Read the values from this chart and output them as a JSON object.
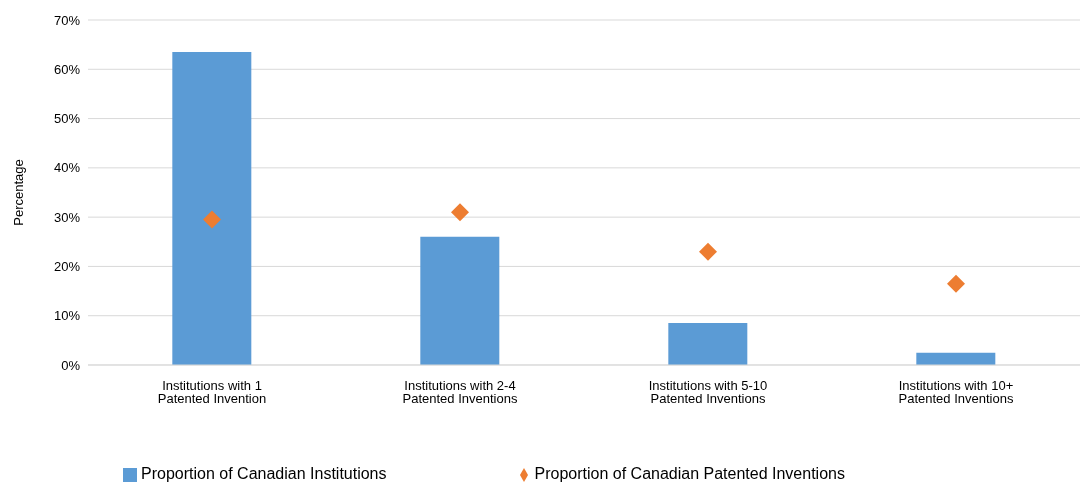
{
  "chart_data": {
    "type": "bar",
    "ylabel": "Percentage",
    "categories": [
      "Institutions with 1 Patented Invention",
      "Institutions with 2-4 Patented Inventions",
      "Institutions with 5-10 Patented Inventions",
      "Institutions with 10+ Patented Inventions"
    ],
    "series": [
      {
        "name": "Proportion of Canadian Institutions",
        "color": "#5b9bd5",
        "values": [
          63.5,
          26,
          8.5,
          2.5
        ]
      },
      {
        "name": "Proportion of Canadian Patented Inventions",
        "type": "scatter",
        "marker": "diamond",
        "color": "#ed7d31",
        "values": [
          29.5,
          31,
          23,
          16.5
        ]
      }
    ],
    "ylim": [
      0,
      70
    ],
    "yticks": [
      {
        "value": 0,
        "label": "0%"
      },
      {
        "value": 10,
        "label": "10%"
      },
      {
        "value": 20,
        "label": "20%"
      },
      {
        "value": 30,
        "label": "30%"
      },
      {
        "value": 40,
        "label": "40%"
      },
      {
        "value": 50,
        "label": "50%"
      },
      {
        "value": 60,
        "label": "60%"
      },
      {
        "value": 70,
        "label": "70%"
      }
    ],
    "grid": "y",
    "legend": "bottom"
  }
}
